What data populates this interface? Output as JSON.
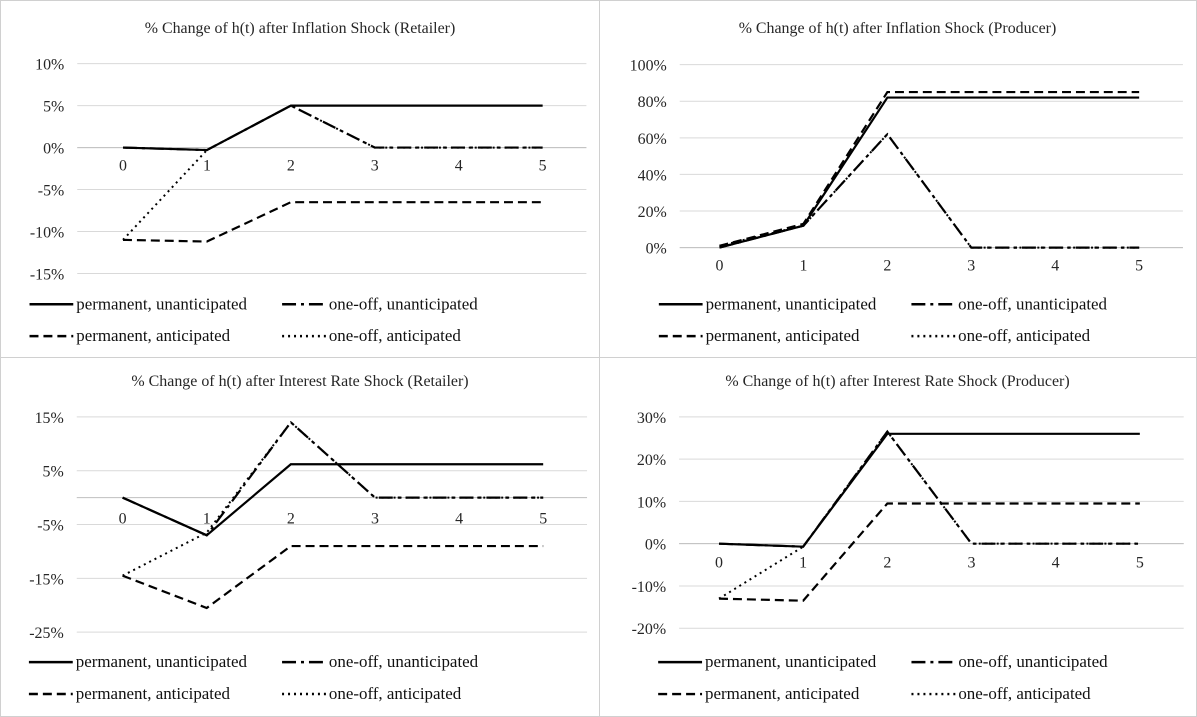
{
  "chart_data": [
    {
      "type": "line",
      "title": "% Change of h(t) after Inflation Shock (Retailer)",
      "x": [
        0,
        1,
        2,
        3,
        4,
        5
      ],
      "x_tick_labels": [
        "0",
        "1",
        "2",
        "3",
        "4",
        "5"
      ],
      "ylim": [
        -15,
        10
      ],
      "y_ticks": [
        10,
        5,
        0,
        -5,
        -10,
        -15
      ],
      "y_tick_labels": [
        "10%",
        "5%",
        "0%",
        "-5%",
        "-10%",
        "-15%"
      ],
      "grid": true,
      "legend_position": "bottom",
      "series": [
        {
          "name": "permanent, unanticipated",
          "style": "solid",
          "values": [
            0,
            -0.3,
            5,
            5,
            5,
            5
          ]
        },
        {
          "name": "one-off, unanticipated",
          "style": "dashdot",
          "values": [
            0,
            -0.3,
            5,
            0,
            0,
            0
          ]
        },
        {
          "name": "permanent, anticipated",
          "style": "dashed",
          "values": [
            -11,
            -11.2,
            -6.5,
            -6.5,
            -6.5,
            -6.5
          ]
        },
        {
          "name": "one-off, anticipated",
          "style": "dotted",
          "values": [
            -11,
            -0.3,
            5,
            0,
            0,
            0
          ]
        }
      ]
    },
    {
      "type": "line",
      "title": "% Change of h(t) after Inflation Shock (Producer)",
      "x": [
        0,
        1,
        2,
        3,
        4,
        5
      ],
      "x_tick_labels": [
        "0",
        "1",
        "2",
        "3",
        "4",
        "5"
      ],
      "ylim": [
        0,
        100
      ],
      "y_ticks": [
        100,
        80,
        60,
        40,
        20,
        0
      ],
      "y_tick_labels": [
        "100%",
        "80%",
        "60%",
        "40%",
        "20%",
        "0%"
      ],
      "grid": true,
      "legend_position": "bottom",
      "series": [
        {
          "name": "permanent, unanticipated",
          "style": "solid",
          "values": [
            0,
            12,
            82,
            82,
            82,
            82
          ]
        },
        {
          "name": "one-off, unanticipated",
          "style": "dashdot",
          "values": [
            0,
            12,
            62,
            0,
            0,
            0
          ]
        },
        {
          "name": "permanent, anticipated",
          "style": "dashed",
          "values": [
            1,
            13,
            85,
            85,
            85,
            85
          ]
        },
        {
          "name": "one-off, anticipated",
          "style": "dotted",
          "values": [
            1,
            12,
            62,
            0,
            0,
            0
          ]
        }
      ]
    },
    {
      "type": "line",
      "title": "% Change of h(t) after Interest Rate Shock (Retailer)",
      "x": [
        0,
        1,
        2,
        3,
        4,
        5
      ],
      "x_tick_labels": [
        "0",
        "1",
        "2",
        "3",
        "4",
        "5"
      ],
      "ylim": [
        -25,
        15
      ],
      "y_ticks": [
        15,
        5,
        -5,
        -15,
        -25
      ],
      "y_tick_labels": [
        "15%",
        "5%",
        "-5%",
        "-15%",
        "-25%"
      ],
      "grid": true,
      "legend_position": "bottom",
      "series": [
        {
          "name": "permanent, unanticipated",
          "style": "solid",
          "values": [
            0,
            -7,
            6.2,
            6.2,
            6.2,
            6.2
          ]
        },
        {
          "name": "one-off, unanticipated",
          "style": "dashdot",
          "values": [
            0,
            -7,
            14,
            0,
            0,
            0
          ]
        },
        {
          "name": "permanent, anticipated",
          "style": "dashed",
          "values": [
            -14.5,
            -20.5,
            -9,
            -9,
            -9,
            -9
          ]
        },
        {
          "name": "one-off, anticipated",
          "style": "dotted",
          "values": [
            -14.5,
            -6.5,
            14,
            0,
            0,
            0
          ]
        }
      ]
    },
    {
      "type": "line",
      "title": "% Change of h(t) after Interest Rate Shock (Producer)",
      "x": [
        0,
        1,
        2,
        3,
        4,
        5
      ],
      "x_tick_labels": [
        "0",
        "1",
        "2",
        "3",
        "4",
        "5"
      ],
      "ylim": [
        -20,
        30
      ],
      "y_ticks": [
        30,
        20,
        10,
        0,
        -10,
        -20
      ],
      "y_tick_labels": [
        "30%",
        "20%",
        "10%",
        "0%",
        "-10%",
        "-20%"
      ],
      "grid": true,
      "legend_position": "bottom",
      "series": [
        {
          "name": "permanent, unanticipated",
          "style": "solid",
          "values": [
            0,
            -0.7,
            26,
            26,
            26,
            26
          ]
        },
        {
          "name": "one-off, unanticipated",
          "style": "dashdot",
          "values": [
            0,
            -0.7,
            26.5,
            0,
            0,
            0
          ]
        },
        {
          "name": "permanent, anticipated",
          "style": "dashed",
          "values": [
            -13,
            -13.5,
            9.5,
            9.5,
            9.5,
            9.5
          ]
        },
        {
          "name": "one-off, anticipated",
          "style": "dotted",
          "values": [
            -13,
            -0.7,
            26.5,
            0,
            0,
            0
          ]
        }
      ]
    }
  ]
}
